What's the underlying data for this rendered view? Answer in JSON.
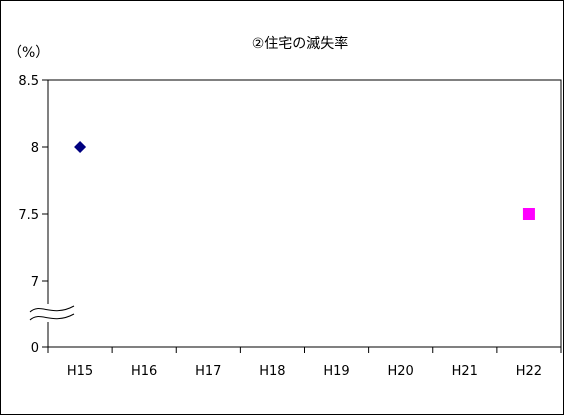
{
  "chart_data": {
    "type": "scatter",
    "title": "②住宅の滅失率",
    "ylabel": "（%）",
    "categories": [
      "H15",
      "H16",
      "H17",
      "H18",
      "H19",
      "H20",
      "H21",
      "H22"
    ],
    "y_tick_labels": [
      "8.5",
      "8",
      "7.5",
      "7",
      "0"
    ],
    "y_tick_values": [
      8.5,
      8.0,
      7.5,
      7.0,
      0
    ],
    "axis_break": true,
    "ylim": [
      6.75,
      8.5
    ],
    "grid": false,
    "series": [
      {
        "category": "H15",
        "value": 8.0,
        "marker": "diamond",
        "color": "#000080"
      },
      {
        "category": "H22",
        "value": 7.5,
        "marker": "square",
        "color": "#ff00ff"
      }
    ]
  }
}
